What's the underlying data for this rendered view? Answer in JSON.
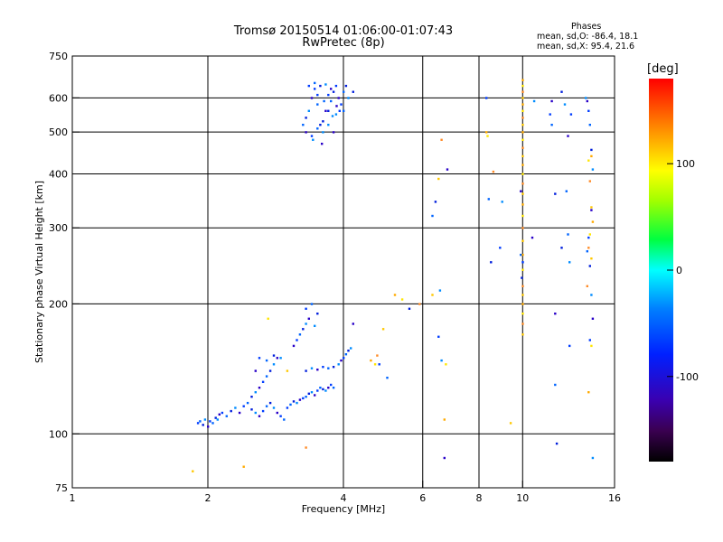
{
  "header": {
    "title_line1": "Tromsø 20150514 01:06:00-01:07:43",
    "title_line2": "RwPretec (8p)"
  },
  "stats": {
    "heading": "Phases",
    "line_o": "mean, sd,O: -86.4, 18.1",
    "line_x": "mean, sd,X:  95.4, 21.6"
  },
  "colorbar": {
    "label": "[deg]",
    "range": [
      -180,
      180
    ],
    "ticks": [
      {
        "value": 100,
        "label": "100"
      },
      {
        "value": 0,
        "label": "0"
      },
      {
        "value": -100,
        "label": "-100"
      }
    ]
  },
  "chart_data": {
    "type": "scatter",
    "xlabel": "Frequency [MHz]",
    "ylabel": "Stationary phase Virtual Height [km]",
    "x_scale": "log",
    "y_scale": "log",
    "xlim": [
      1,
      16
    ],
    "ylim": [
      75,
      750
    ],
    "x_ticks": [
      1,
      2,
      4,
      6,
      8,
      10,
      16
    ],
    "y_ticks": [
      75,
      100,
      200,
      300,
      400,
      500,
      600,
      750
    ],
    "x_grid": [
      2,
      4,
      6,
      8,
      10
    ],
    "y_grid": [
      100,
      200,
      300,
      400,
      500,
      600
    ],
    "color_meaning": "phase in degrees",
    "series": [
      {
        "name": "O",
        "phase_mean": -86.4,
        "phase_sd": 18.1,
        "points": [
          [
            1.9,
            106
          ],
          [
            1.92,
            107
          ],
          [
            1.95,
            105
          ],
          [
            1.97,
            108
          ],
          [
            2.0,
            104
          ],
          [
            2.02,
            107
          ],
          [
            2.05,
            106
          ],
          [
            2.08,
            109
          ],
          [
            2.1,
            108
          ],
          [
            2.12,
            111
          ],
          [
            2.15,
            112
          ],
          [
            2.2,
            110
          ],
          [
            2.25,
            113
          ],
          [
            2.3,
            115
          ],
          [
            2.35,
            112
          ],
          [
            2.4,
            116
          ],
          [
            2.45,
            118
          ],
          [
            2.5,
            114
          ],
          [
            2.55,
            112
          ],
          [
            2.6,
            110
          ],
          [
            2.65,
            113
          ],
          [
            2.7,
            116
          ],
          [
            2.75,
            118
          ],
          [
            2.8,
            115
          ],
          [
            2.85,
            112
          ],
          [
            2.9,
            110
          ],
          [
            2.95,
            108
          ],
          [
            2.5,
            122
          ],
          [
            2.55,
            125
          ],
          [
            2.6,
            128
          ],
          [
            2.65,
            132
          ],
          [
            2.7,
            136
          ],
          [
            2.75,
            140
          ],
          [
            2.8,
            145
          ],
          [
            2.85,
            150
          ],
          [
            2.6,
            150
          ],
          [
            2.7,
            148
          ],
          [
            2.8,
            152
          ],
          [
            2.9,
            150
          ],
          [
            2.55,
            140
          ],
          [
            3.0,
            115
          ],
          [
            3.05,
            117
          ],
          [
            3.1,
            119
          ],
          [
            3.15,
            118
          ],
          [
            3.2,
            120
          ],
          [
            3.25,
            121
          ],
          [
            3.3,
            122
          ],
          [
            3.35,
            124
          ],
          [
            3.4,
            125
          ],
          [
            3.45,
            123
          ],
          [
            3.5,
            126
          ],
          [
            3.55,
            128
          ],
          [
            3.6,
            127
          ],
          [
            3.65,
            126
          ],
          [
            3.7,
            128
          ],
          [
            3.75,
            130
          ],
          [
            3.8,
            128
          ],
          [
            3.3,
            140
          ],
          [
            3.4,
            142
          ],
          [
            3.5,
            141
          ],
          [
            3.6,
            143
          ],
          [
            3.7,
            142
          ],
          [
            3.8,
            143
          ],
          [
            3.9,
            145
          ],
          [
            3.95,
            148
          ],
          [
            4.0,
            150
          ],
          [
            4.05,
            153
          ],
          [
            4.1,
            156
          ],
          [
            4.15,
            158
          ],
          [
            3.1,
            160
          ],
          [
            3.15,
            165
          ],
          [
            3.2,
            170
          ],
          [
            3.25,
            175
          ],
          [
            3.3,
            180
          ],
          [
            3.35,
            185
          ],
          [
            3.3,
            195
          ],
          [
            3.4,
            200
          ],
          [
            3.5,
            190
          ],
          [
            3.45,
            178
          ],
          [
            4.2,
            180
          ],
          [
            4.8,
            145
          ],
          [
            5.0,
            135
          ],
          [
            5.6,
            195
          ],
          [
            6.6,
            148
          ],
          [
            6.7,
            88
          ],
          [
            6.5,
            168
          ],
          [
            3.25,
            520
          ],
          [
            3.3,
            540
          ],
          [
            3.35,
            560
          ],
          [
            3.4,
            600
          ],
          [
            3.45,
            630
          ],
          [
            3.5,
            580
          ],
          [
            3.55,
            520
          ],
          [
            3.6,
            500
          ],
          [
            3.65,
            560
          ],
          [
            3.7,
            610
          ],
          [
            3.75,
            590
          ],
          [
            3.8,
            620
          ],
          [
            3.85,
            550
          ],
          [
            3.9,
            600
          ],
          [
            3.95,
            580
          ],
          [
            4.0,
            620
          ],
          [
            4.05,
            640
          ],
          [
            4.1,
            600
          ],
          [
            3.3,
            500
          ],
          [
            3.4,
            490
          ],
          [
            3.5,
            510
          ],
          [
            3.6,
            530
          ],
          [
            3.7,
            520
          ],
          [
            3.8,
            500
          ],
          [
            3.35,
            640
          ],
          [
            3.45,
            650
          ],
          [
            3.55,
            640
          ],
          [
            3.65,
            645
          ],
          [
            3.75,
            630
          ],
          [
            3.85,
            640
          ],
          [
            4.0,
            560
          ],
          [
            4.2,
            620
          ],
          [
            3.42,
            480
          ],
          [
            3.58,
            470
          ],
          [
            3.5,
            610
          ],
          [
            3.62,
            590
          ],
          [
            3.7,
            560
          ],
          [
            3.78,
            545
          ],
          [
            3.86,
            575
          ],
          [
            3.92,
            560
          ],
          [
            6.3,
            320
          ],
          [
            6.4,
            345
          ],
          [
            6.55,
            215
          ],
          [
            6.8,
            410
          ],
          [
            8.3,
            600
          ],
          [
            8.4,
            350
          ],
          [
            8.5,
            250
          ],
          [
            9.0,
            345
          ],
          [
            9.9,
            365
          ],
          [
            10.0,
            250
          ],
          [
            9.9,
            260
          ],
          [
            9.95,
            230
          ],
          [
            10.6,
            590
          ],
          [
            11.6,
            590
          ],
          [
            11.5,
            550
          ],
          [
            11.6,
            520
          ],
          [
            12.2,
            620
          ],
          [
            12.4,
            580
          ],
          [
            12.6,
            490
          ],
          [
            12.8,
            550
          ],
          [
            12.5,
            365
          ],
          [
            11.8,
            360
          ],
          [
            13.8,
            600
          ],
          [
            13.9,
            590
          ],
          [
            14.0,
            560
          ],
          [
            14.1,
            520
          ],
          [
            14.2,
            455
          ],
          [
            14.3,
            410
          ],
          [
            14.2,
            330
          ],
          [
            14.0,
            285
          ],
          [
            13.9,
            265
          ],
          [
            14.1,
            245
          ],
          [
            14.2,
            210
          ],
          [
            14.3,
            185
          ],
          [
            14.1,
            165
          ],
          [
            12.6,
            290
          ],
          [
            12.2,
            270
          ],
          [
            12.7,
            250
          ],
          [
            11.8,
            190
          ],
          [
            12.7,
            160
          ],
          [
            11.8,
            130
          ],
          [
            11.9,
            95
          ],
          [
            14.3,
            88
          ],
          [
            10.5,
            285
          ],
          [
            8.9,
            270
          ]
        ]
      },
      {
        "name": "X",
        "phase_mean": 95.4,
        "phase_sd": 21.6,
        "points": [
          [
            1.85,
            82
          ],
          [
            2.4,
            84
          ],
          [
            2.72,
            185
          ],
          [
            3.3,
            93
          ],
          [
            3.0,
            140
          ],
          [
            4.6,
            148
          ],
          [
            4.7,
            145
          ],
          [
            4.75,
            152
          ],
          [
            4.9,
            175
          ],
          [
            5.2,
            210
          ],
          [
            5.4,
            205
          ],
          [
            5.9,
            200
          ],
          [
            6.3,
            210
          ],
          [
            6.7,
            108
          ],
          [
            6.75,
            145
          ],
          [
            6.6,
            480
          ],
          [
            6.5,
            390
          ],
          [
            8.3,
            500
          ],
          [
            8.35,
            490
          ],
          [
            8.6,
            405
          ],
          [
            9.4,
            106
          ],
          [
            10.0,
            660
          ],
          [
            10.0,
            640
          ],
          [
            10.0,
            620
          ],
          [
            10.0,
            600
          ],
          [
            10.0,
            580
          ],
          [
            10.0,
            560
          ],
          [
            10.0,
            540
          ],
          [
            10.0,
            520
          ],
          [
            10.0,
            500
          ],
          [
            10.0,
            480
          ],
          [
            10.0,
            460
          ],
          [
            10.0,
            440
          ],
          [
            10.0,
            420
          ],
          [
            10.0,
            400
          ],
          [
            10.0,
            380
          ],
          [
            10.0,
            360
          ],
          [
            10.0,
            340
          ],
          [
            10.0,
            320
          ],
          [
            10.0,
            300
          ],
          [
            10.0,
            280
          ],
          [
            10.0,
            260
          ],
          [
            10.0,
            240
          ],
          [
            10.0,
            220
          ],
          [
            10.0,
            210
          ],
          [
            10.0,
            200
          ],
          [
            10.0,
            190
          ],
          [
            10.0,
            180
          ],
          [
            10.0,
            170
          ],
          [
            14.2,
            440
          ],
          [
            14.0,
            430
          ],
          [
            14.1,
            385
          ],
          [
            14.2,
            335
          ],
          [
            14.3,
            310
          ],
          [
            14.1,
            290
          ],
          [
            14.0,
            270
          ],
          [
            14.2,
            255
          ],
          [
            14.0,
            125
          ],
          [
            14.2,
            160
          ],
          [
            13.9,
            220
          ]
        ]
      }
    ]
  }
}
